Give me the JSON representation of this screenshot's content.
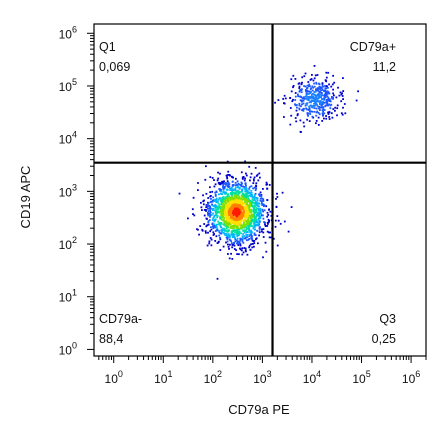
{
  "chart_data": {
    "type": "scatter",
    "subtype": "flow-cytometry-density-plot",
    "title": "",
    "xlabel": "CD79a PE",
    "ylabel": "CD19 APC",
    "x_scale": "log",
    "y_scale": "log",
    "xlim": [
      0.4,
      2000000
    ],
    "ylim": [
      0.75,
      1500000
    ],
    "x_ticks": [
      {
        "value": 1,
        "base": "10",
        "exp": "0"
      },
      {
        "value": 10,
        "base": "10",
        "exp": "1"
      },
      {
        "value": 100,
        "base": "10",
        "exp": "2"
      },
      {
        "value": 1000,
        "base": "10",
        "exp": "3"
      },
      {
        "value": 10000,
        "base": "10",
        "exp": "4"
      },
      {
        "value": 100000,
        "base": "10",
        "exp": "5"
      },
      {
        "value": 1000000,
        "base": "10",
        "exp": "6"
      }
    ],
    "y_ticks": [
      {
        "value": 1,
        "base": "10",
        "exp": "0"
      },
      {
        "value": 10,
        "base": "10",
        "exp": "1"
      },
      {
        "value": 100,
        "base": "10",
        "exp": "2"
      },
      {
        "value": 1000,
        "base": "10",
        "exp": "3"
      },
      {
        "value": 10000,
        "base": "10",
        "exp": "4"
      },
      {
        "value": 100000,
        "base": "10",
        "exp": "5"
      },
      {
        "value": 1000000,
        "base": "10",
        "exp": "6"
      }
    ],
    "gates": {
      "x_threshold": 1600,
      "y_threshold": 3500
    },
    "quadrants": [
      {
        "position": "top-left",
        "name": "Q1",
        "value": "0,069"
      },
      {
        "position": "top-right",
        "name": "CD79a+",
        "value": "11,2"
      },
      {
        "position": "bottom-left",
        "name": "CD79a-",
        "value": "88,4"
      },
      {
        "position": "bottom-right",
        "name": "Q3",
        "value": "0,25"
      }
    ],
    "populations": [
      {
        "center_x": 300,
        "center_y": 400,
        "spread_log_x": 0.3,
        "spread_log_y": 0.3,
        "events": 1800,
        "density_colors": [
          "#0000cc",
          "#1a55ff",
          "#00b4ff",
          "#00e0a0",
          "#7ee000",
          "#ffe000",
          "#ff8000",
          "#ff1a00"
        ]
      },
      {
        "center_x": 11000,
        "center_y": 55000,
        "spread_log_x": 0.27,
        "spread_log_y": 0.22,
        "events": 420,
        "density_colors": [
          "#0000cc",
          "#1a55ff",
          "#1a80ff"
        ]
      }
    ],
    "grid": false,
    "legend": "none"
  }
}
